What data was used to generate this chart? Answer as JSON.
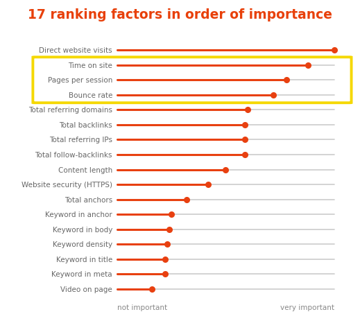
{
  "title": "17 ranking factors in order of importance",
  "title_color": "#e8400a",
  "title_fontsize": 13.5,
  "factors": [
    "Direct website visits",
    "Time on site",
    "Pages per session",
    "Bounce rate",
    "Total referring domains",
    "Total backlinks",
    "Total referring IPs",
    "Total follow-backlinks",
    "Content length",
    "Website security (HTTPS)",
    "Total anchors",
    "Keyword in anchor",
    "Keyword in body",
    "Keyword density",
    "Keyword in title",
    "Keyword in meta",
    "Video on page"
  ],
  "values": [
    1.0,
    0.88,
    0.78,
    0.72,
    0.6,
    0.59,
    0.59,
    0.59,
    0.5,
    0.42,
    0.32,
    0.25,
    0.24,
    0.23,
    0.22,
    0.22,
    0.16
  ],
  "line_color": "#e84010",
  "dot_color": "#e84010",
  "bg_line_color": "#cccccc",
  "highlight_indices": [
    1,
    2,
    3
  ],
  "highlight_box_color": "#f5d800",
  "xlabel_left": "not important",
  "xlabel_right": "very important",
  "x_min": 0.0,
  "x_max": 1.0,
  "label_fontsize": 7.5,
  "label_color": "#666666",
  "xlabel_fontsize": 7.5,
  "background_color": "#ffffff"
}
